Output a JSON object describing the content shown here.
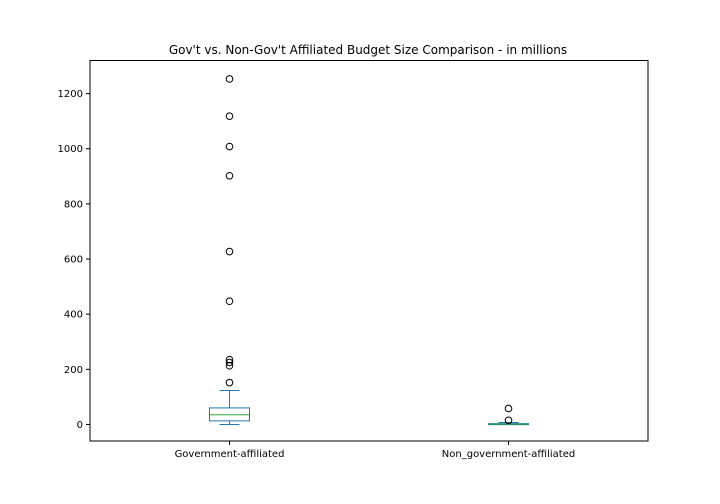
{
  "chart_data": {
    "type": "box",
    "title": "Gov't vs. Non-Gov't Affiliated Budget Size Comparison - in millions",
    "xlabel": "",
    "ylabel": "",
    "ylim": [
      -60,
      1320
    ],
    "yticks": [
      0,
      200,
      400,
      600,
      800,
      1000,
      1200
    ],
    "grid": false,
    "categories": [
      "Government-affiliated",
      "Non_government-affiliated"
    ],
    "boxes": [
      {
        "category": "Government-affiliated",
        "whisker_low": 0,
        "q1": 13,
        "median": 35,
        "q3": 60,
        "whisker_high": 123,
        "outliers": [
          152,
          213,
          225,
          235,
          447,
          627,
          902,
          1008,
          1118,
          1253
        ]
      },
      {
        "category": "Non_government-affiliated",
        "whisker_low": 0,
        "q1": 0,
        "median": 1,
        "q3": 3,
        "whisker_high": 7,
        "outliers": [
          15,
          58
        ]
      }
    ],
    "colors": {
      "box": "#1f77b4",
      "median": "#2ca02c",
      "whisker": "#1f77b4",
      "cap": "#1f77b4",
      "outlier_edge": "#000000",
      "axes": "#000000"
    }
  }
}
